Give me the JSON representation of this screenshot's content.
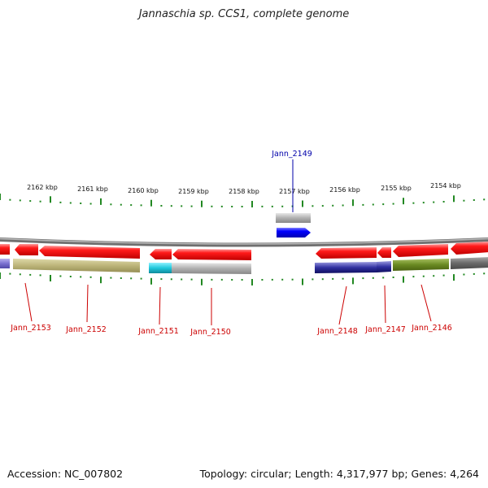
{
  "title": "Jannaschia sp. CCS1, complete genome",
  "footer": {
    "accession": "Accession: NC_007802",
    "summary": "Topology: circular; Length: 4,317,977 bp; Genes: 4,264"
  },
  "scale_labels": [
    "2162 kbp",
    "2161 kbp",
    "2160 kbp",
    "2159 kbp",
    "2158 kbp",
    "2157 kbp",
    "2156 kbp",
    "2155 kbp",
    "2154 kbp"
  ],
  "gene_labels": [
    {
      "name": "Jann_2149",
      "color": "#0000aa"
    },
    {
      "name": "Jann_2153",
      "color": "#cc0000"
    },
    {
      "name": "Jann_2152",
      "color": "#cc0000"
    },
    {
      "name": "Jann_2151",
      "color": "#cc0000"
    },
    {
      "name": "Jann_2150",
      "color": "#cc0000"
    },
    {
      "name": "Jann_2148",
      "color": "#cc0000"
    },
    {
      "name": "Jann_2147",
      "color": "#cc0000"
    },
    {
      "name": "Jann_2146",
      "color": "#cc0000"
    }
  ],
  "colors": {
    "forward_cds": "#ee1111",
    "reverse_cds": "#0022ee",
    "backbone": "#888888",
    "tick": "#228822",
    "cog_olive": "#b8b070",
    "cog_grey": "#b0b0b0",
    "cog_cyan": "#22c4d8",
    "cog_navy": "#1a1a80",
    "cog_green": "#6a8a22",
    "cog_lavender": "#7a70d0",
    "cog_darkgrey": "#6a6a6a"
  }
}
